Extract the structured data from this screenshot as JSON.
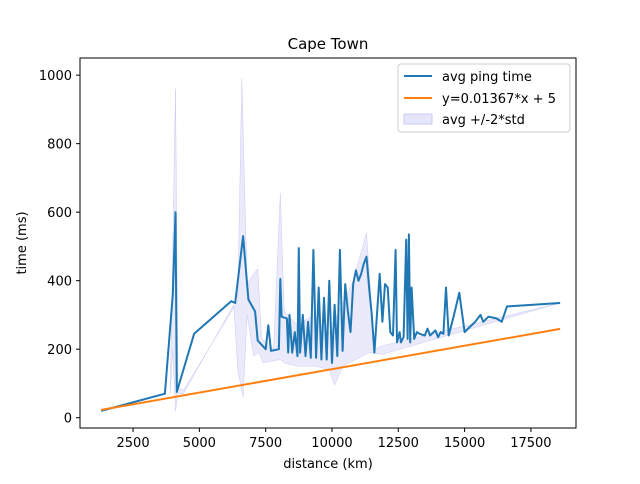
{
  "chart_data": {
    "type": "line",
    "title": "Cape Town",
    "xlabel": "distance (km)",
    "ylabel": "time (ms)",
    "xlim": [
      500,
      19200
    ],
    "ylim": [
      -30,
      1050
    ],
    "xticks": [
      2500,
      5000,
      7500,
      10000,
      12500,
      15000,
      17500
    ],
    "yticks": [
      0,
      200,
      400,
      600,
      800,
      1000
    ],
    "grid": false,
    "legend_position": "top-right",
    "legend": [
      "avg ping time",
      "y=0.01367*x + 5",
      "avg +/-2*std"
    ],
    "colors": {
      "avg": "#1f77b4",
      "fit": "#ff7f0e",
      "band_fill": "#e6e6fa",
      "band_stroke": "#c9c9f5"
    },
    "series": [
      {
        "name": "avg ping time",
        "kind": "line",
        "points": [
          [
            1300,
            20
          ],
          [
            3700,
            70
          ],
          [
            4000,
            360
          ],
          [
            4100,
            600
          ],
          [
            4150,
            75
          ],
          [
            4800,
            245
          ],
          [
            6200,
            340
          ],
          [
            6350,
            335
          ],
          [
            6650,
            530
          ],
          [
            6850,
            345
          ],
          [
            7100,
            310
          ],
          [
            7200,
            225
          ],
          [
            7500,
            200
          ],
          [
            7600,
            270
          ],
          [
            7700,
            195
          ],
          [
            8000,
            200
          ],
          [
            8050,
            405
          ],
          [
            8100,
            295
          ],
          [
            8300,
            290
          ],
          [
            8350,
            190
          ],
          [
            8400,
            300
          ],
          [
            8500,
            190
          ],
          [
            8600,
            250
          ],
          [
            8700,
            180
          ],
          [
            8750,
            495
          ],
          [
            8800,
            190
          ],
          [
            8900,
            300
          ],
          [
            9000,
            180
          ],
          [
            9100,
            280
          ],
          [
            9200,
            175
          ],
          [
            9300,
            490
          ],
          [
            9400,
            175
          ],
          [
            9500,
            380
          ],
          [
            9600,
            170
          ],
          [
            9700,
            350
          ],
          [
            9800,
            170
          ],
          [
            9900,
            400
          ],
          [
            10000,
            160
          ],
          [
            10100,
            330
          ],
          [
            10200,
            180
          ],
          [
            10300,
            490
          ],
          [
            10400,
            195
          ],
          [
            10500,
            390
          ],
          [
            10600,
            310
          ],
          [
            10700,
            250
          ],
          [
            10800,
            390
          ],
          [
            10900,
            430
          ],
          [
            11000,
            400
          ],
          [
            11100,
            420
          ],
          [
            11200,
            450
          ],
          [
            11300,
            470
          ],
          [
            11400,
            380
          ],
          [
            11500,
            300
          ],
          [
            11600,
            190
          ],
          [
            11800,
            420
          ],
          [
            11900,
            280
          ],
          [
            12000,
            390
          ],
          [
            12100,
            380
          ],
          [
            12200,
            250
          ],
          [
            12300,
            240
          ],
          [
            12400,
            490
          ],
          [
            12450,
            220
          ],
          [
            12550,
            250
          ],
          [
            12600,
            220
          ],
          [
            12700,
            235
          ],
          [
            12800,
            520
          ],
          [
            12850,
            230
          ],
          [
            12900,
            535
          ],
          [
            12950,
            220
          ],
          [
            13000,
            380
          ],
          [
            13100,
            230
          ],
          [
            13200,
            250
          ],
          [
            13300,
            245
          ],
          [
            13500,
            240
          ],
          [
            13600,
            260
          ],
          [
            13700,
            240
          ],
          [
            13900,
            255
          ],
          [
            14000,
            235
          ],
          [
            14100,
            250
          ],
          [
            14200,
            245
          ],
          [
            14300,
            380
          ],
          [
            14400,
            240
          ],
          [
            14600,
            300
          ],
          [
            14800,
            365
          ],
          [
            15000,
            250
          ],
          [
            15200,
            265
          ],
          [
            15400,
            280
          ],
          [
            15600,
            300
          ],
          [
            15700,
            280
          ],
          [
            15900,
            295
          ],
          [
            16200,
            290
          ],
          [
            16400,
            280
          ],
          [
            16600,
            325
          ],
          [
            18600,
            335
          ]
        ]
      },
      {
        "name": "y=0.01367*x + 5",
        "kind": "line",
        "points": [
          [
            1300,
            22.8
          ],
          [
            18600,
            259.3
          ]
        ]
      },
      {
        "name": "avg +/-2*std",
        "kind": "band",
        "upper": [
          [
            3900,
            70
          ],
          [
            4000,
            500
          ],
          [
            4100,
            960
          ],
          [
            4200,
            90
          ],
          [
            4400,
            80
          ],
          [
            6450,
            340
          ],
          [
            6600,
            990
          ],
          [
            6800,
            390
          ],
          [
            7050,
            420
          ],
          [
            7200,
            435
          ],
          [
            7350,
            230
          ],
          [
            7800,
            200
          ],
          [
            8050,
            655
          ],
          [
            8200,
            310
          ],
          [
            8700,
            270
          ],
          [
            9300,
            300
          ],
          [
            9800,
            250
          ],
          [
            10000,
            250
          ],
          [
            10200,
            300
          ],
          [
            10800,
            400
          ],
          [
            11300,
            540
          ],
          [
            11600,
            200
          ],
          [
            11900,
            210
          ],
          [
            18600,
            335
          ]
        ],
        "lower": [
          [
            18600,
            335
          ],
          [
            11900,
            185
          ],
          [
            11400,
            190
          ],
          [
            10400,
            150
          ],
          [
            10100,
            95
          ],
          [
            9900,
            140
          ],
          [
            9400,
            150
          ],
          [
            8700,
            150
          ],
          [
            8200,
            160
          ],
          [
            8050,
            170
          ],
          [
            7400,
            160
          ],
          [
            7250,
            190
          ],
          [
            7050,
            180
          ],
          [
            6800,
            300
          ],
          [
            6650,
            60
          ],
          [
            6450,
            140
          ],
          [
            6300,
            330
          ],
          [
            4400,
            70
          ],
          [
            4200,
            70
          ],
          [
            4100,
            20
          ],
          [
            4000,
            200
          ],
          [
            3900,
            70
          ]
        ]
      }
    ]
  }
}
